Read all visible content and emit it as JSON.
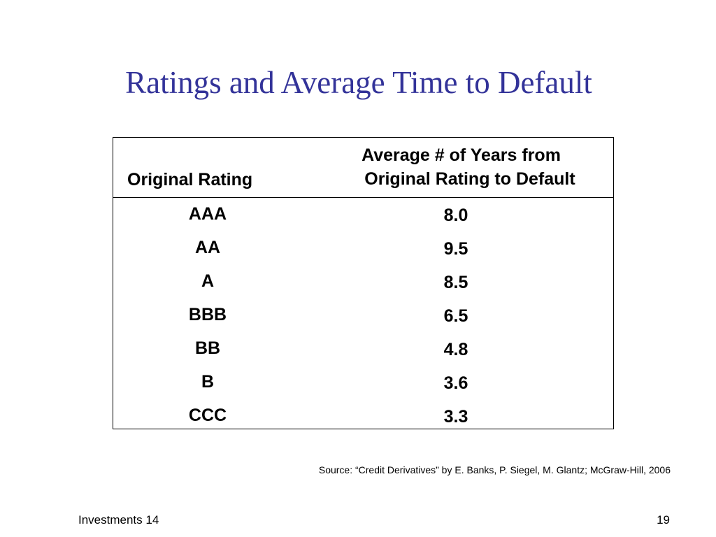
{
  "slide": {
    "title": "Ratings and Average Time to Default",
    "title_color": "#333399"
  },
  "table": {
    "headers": {
      "rating": "Original Rating",
      "years_line1": "Average # of Years from",
      "years_line2": "Original Rating to Default"
    },
    "rows": [
      {
        "rating": "AAA",
        "years": "8.0"
      },
      {
        "rating": "AA",
        "years": "9.5"
      },
      {
        "rating": "A",
        "years": "8.5"
      },
      {
        "rating": "BBB",
        "years": "6.5"
      },
      {
        "rating": "BB",
        "years": "4.8"
      },
      {
        "rating": "B",
        "years": "3.6"
      },
      {
        "rating": "CCC",
        "years": "3.3"
      }
    ]
  },
  "source": "Source: “Credit Derivatives” by E. Banks, P. Siegel, M. Glantz; McGraw-Hill, 2006",
  "footer": {
    "left": "Investments 14",
    "page_number": "19"
  }
}
